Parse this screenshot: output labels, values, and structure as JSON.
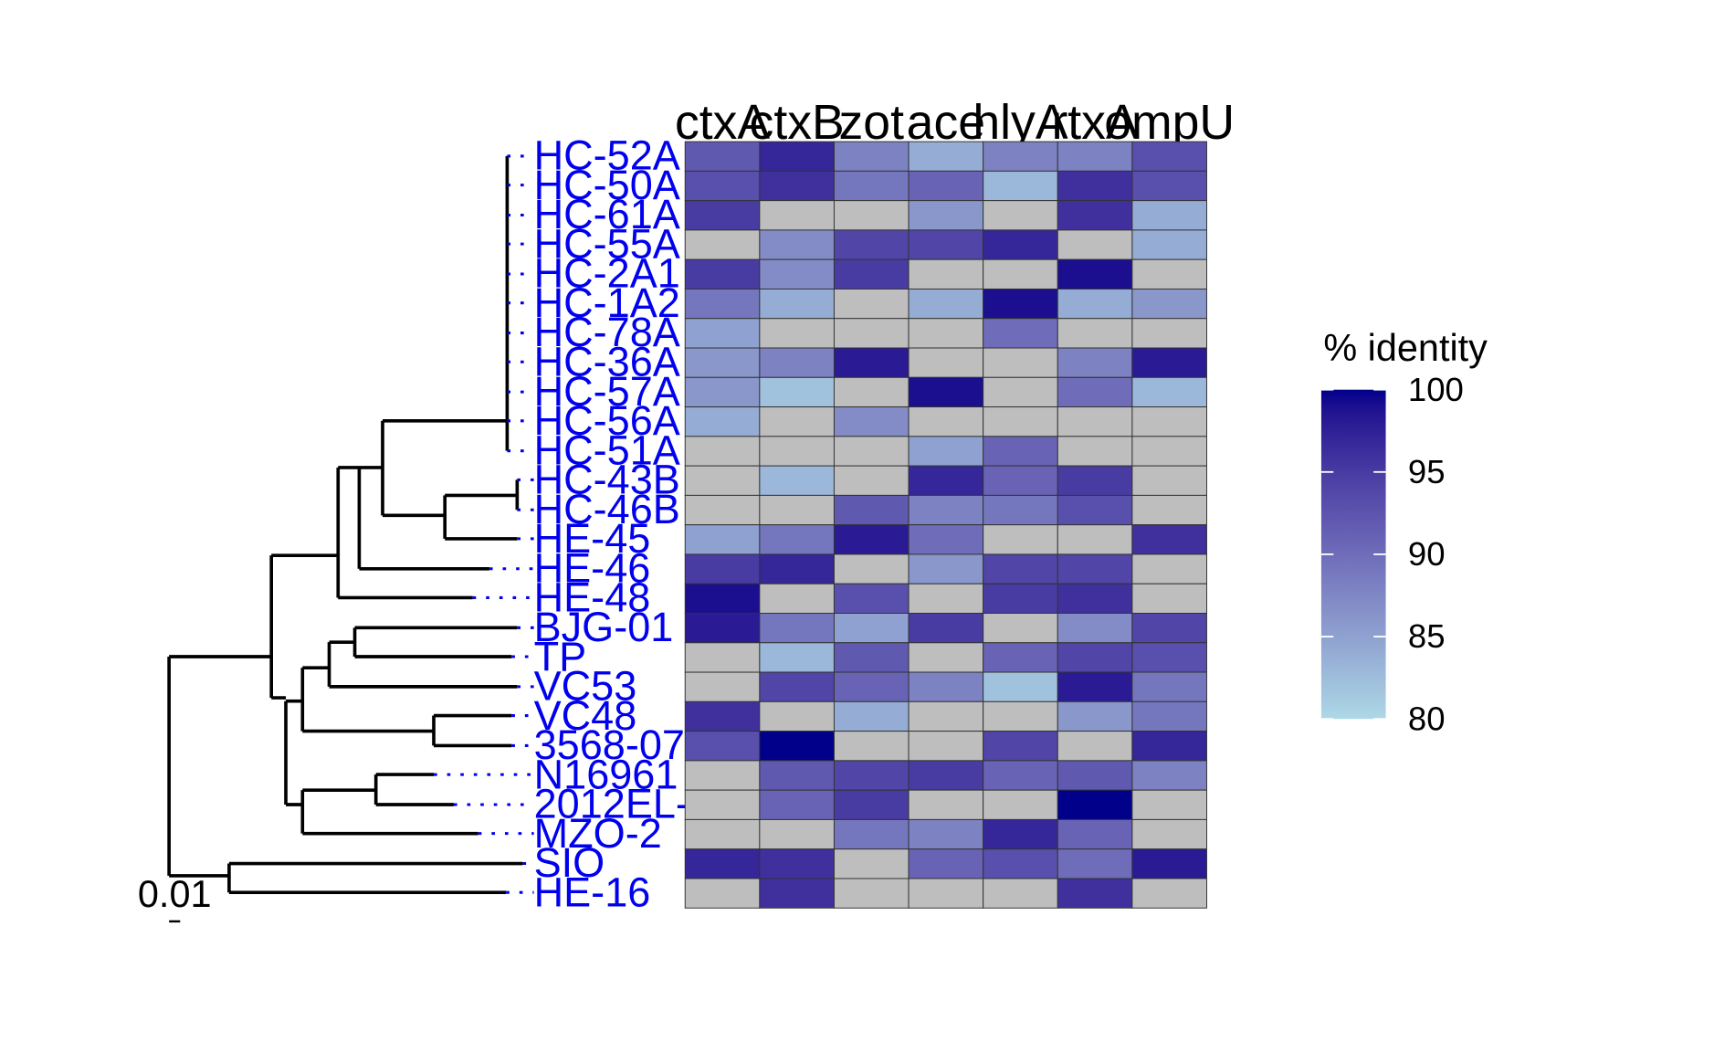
{
  "chart_data": {
    "type": "heatmap",
    "columns": [
      "ctxA",
      "ctxB",
      "zot",
      "ace",
      "hlyA",
      "rtxA",
      "ompU"
    ],
    "rows": [
      "HC-52A",
      "HC-50A",
      "HC-61A",
      "HC-55A",
      "HC-2A1",
      "HC-1A2",
      "HC-78A",
      "HC-36A",
      "HC-57A",
      "HC-56A",
      "HC-51A",
      "HC-43B",
      "HC-46B",
      "HE-45",
      "HE-46",
      "HE-48",
      "BJG-01",
      "TP",
      "VC53",
      "VC48",
      "3568-07",
      "N16961",
      "2012EL-",
      "MZO-2",
      "SIO",
      "HE-16"
    ],
    "values": [
      [
        92,
        97,
        88,
        84,
        88,
        88,
        93
      ],
      [
        93,
        96,
        89,
        91,
        83,
        96,
        93
      ],
      [
        95,
        null,
        null,
        86,
        null,
        96,
        84
      ],
      [
        null,
        87,
        94,
        94,
        97,
        null,
        84
      ],
      [
        95,
        87,
        95,
        null,
        null,
        99,
        null
      ],
      [
        89,
        84,
        null,
        84,
        99,
        84,
        86
      ],
      [
        85,
        null,
        null,
        null,
        90,
        null,
        null
      ],
      [
        86,
        88,
        98,
        null,
        null,
        88,
        98
      ],
      [
        86,
        82,
        null,
        99,
        null,
        90,
        83
      ],
      [
        84,
        null,
        87,
        null,
        null,
        null,
        null
      ],
      [
        null,
        null,
        null,
        85,
        91,
        null,
        null
      ],
      [
        null,
        83,
        null,
        97,
        91,
        95,
        null
      ],
      [
        null,
        null,
        92,
        88,
        89,
        93,
        null
      ],
      [
        85,
        89,
        98,
        90,
        null,
        null,
        96
      ],
      [
        95,
        97,
        null,
        86,
        94,
        94,
        null
      ],
      [
        99,
        null,
        93,
        null,
        95,
        96,
        null
      ],
      [
        98,
        89,
        85,
        95,
        null,
        87,
        94
      ],
      [
        null,
        83,
        92,
        null,
        91,
        94,
        93
      ],
      [
        null,
        94,
        91,
        88,
        82,
        98,
        89
      ],
      [
        96,
        null,
        84,
        null,
        null,
        86,
        89
      ],
      [
        93,
        100,
        null,
        null,
        94,
        null,
        97
      ],
      [
        null,
        92,
        94,
        95,
        91,
        92,
        88
      ],
      [
        null,
        91,
        95,
        null,
        null,
        100,
        null
      ],
      [
        null,
        null,
        89,
        88,
        97,
        91,
        null
      ],
      [
        97,
        96,
        null,
        91,
        93,
        90,
        98
      ],
      [
        null,
        96,
        null,
        null,
        null,
        96,
        null
      ]
    ],
    "legend_title": "% identity",
    "clim": [
      80,
      100
    ],
    "cticks": [
      80,
      85,
      90,
      95,
      100
    ],
    "low_color": "#add8e6",
    "high_color": "#00008b",
    "missing_color": "#bebebe",
    "label_color": "#0000ee",
    "scale_bar_label": "0.01"
  }
}
